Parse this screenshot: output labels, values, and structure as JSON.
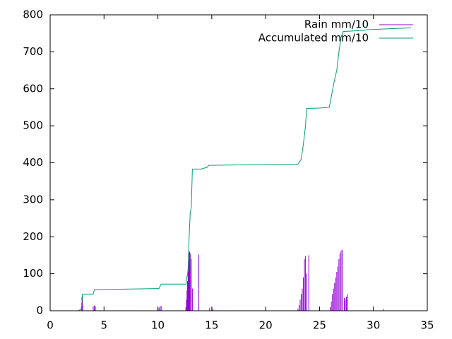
{
  "chart_data": {
    "type": "line",
    "xlim": [
      0,
      35
    ],
    "xticks": [
      0,
      5,
      10,
      15,
      20,
      25,
      30,
      35
    ],
    "ylim": [
      0,
      800
    ],
    "yticks": [
      0,
      100,
      200,
      300,
      400,
      500,
      600,
      700,
      800
    ],
    "legend": "top-right",
    "series": [
      {
        "name": "Rain mm/10",
        "color": "#9400d3",
        "style": "impulses",
        "x": [
          2.9,
          2.95,
          3.0,
          4.0,
          4.1,
          4.2,
          10.1,
          10.2,
          10.3,
          12.6,
          12.65,
          12.7,
          12.75,
          12.8,
          12.85,
          12.9,
          12.95,
          13.0,
          13.1,
          13.2,
          13.8,
          14.8,
          15.1,
          23.0,
          23.1,
          23.2,
          23.3,
          23.4,
          23.5,
          23.6,
          23.7,
          23.8,
          24.0,
          26.0,
          26.1,
          26.2,
          26.3,
          26.4,
          26.5,
          26.6,
          26.7,
          26.8,
          26.9,
          27.0,
          27.1,
          27.3,
          27.4,
          27.5,
          27.6,
          30.9
        ],
        "values": [
          10,
          38,
          40,
          12,
          14,
          12,
          8,
          12,
          13,
          10,
          30,
          55,
          80,
          110,
          135,
          158,
          160,
          155,
          140,
          60,
          152,
          8,
          6,
          5,
          15,
          30,
          45,
          60,
          90,
          140,
          148,
          100,
          150,
          10,
          25,
          45,
          60,
          75,
          90,
          105,
          120,
          140,
          155,
          163,
          165,
          35,
          30,
          38,
          45,
          5
        ]
      },
      {
        "name": "Accumulated mm/10",
        "color": "#009e73",
        "style": "lines",
        "x": [
          1.2,
          2.6,
          2.9,
          3.0,
          4.0,
          4.1,
          9.9,
          10.1,
          10.3,
          12.6,
          12.8,
          12.9,
          13.0,
          13.1,
          13.2,
          14.0,
          14.6,
          14.7,
          19.0,
          23.0,
          23.3,
          23.5,
          23.7,
          23.8,
          25.0,
          25.9,
          26.1,
          26.4,
          26.6,
          26.8,
          27.0,
          27.2,
          29.0,
          29.5,
          33.5
        ],
        "values": [
          0,
          0,
          5,
          45,
          45,
          57,
          60,
          60,
          72,
          72,
          110,
          200,
          265,
          280,
          383,
          383,
          388,
          393,
          395,
          396,
          410,
          450,
          500,
          547,
          548,
          550,
          580,
          625,
          650,
          700,
          740,
          755,
          758,
          760,
          765
        ]
      }
    ]
  }
}
